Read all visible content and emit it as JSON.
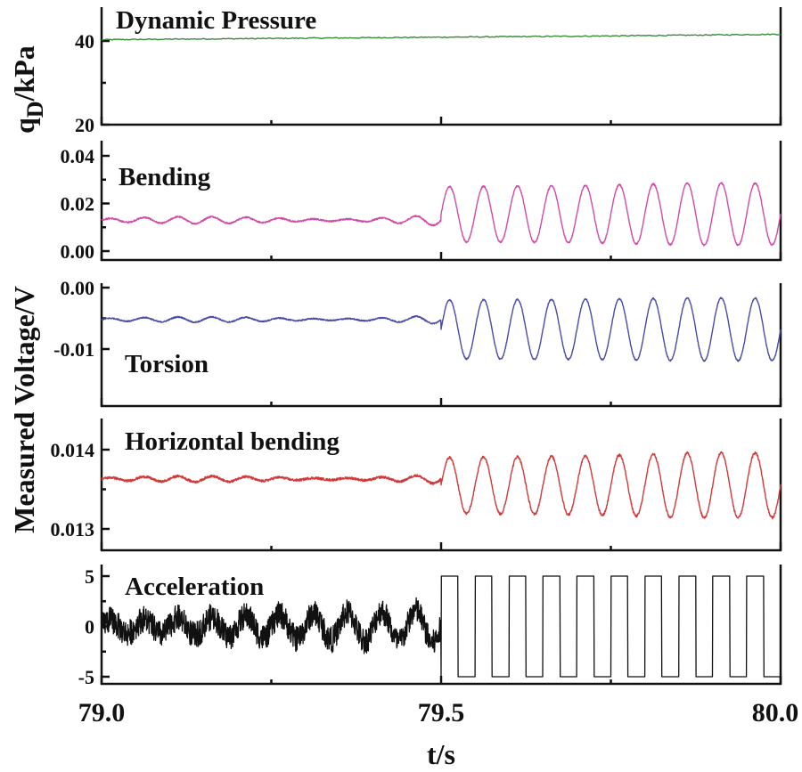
{
  "figure": {
    "ylabel_top": "q_D/kPa",
    "ylabel_top_main": "q",
    "ylabel_top_sub": "D",
    "ylabel_top_rest": "/kPa",
    "ylabel_main": "Measured Voltage/V",
    "xlabel": "t/s"
  },
  "chart_data": [
    {
      "type": "line",
      "title": "Dynamic Pressure",
      "xlim": [
        79.0,
        80.0
      ],
      "ylim": [
        20,
        50
      ],
      "yticks": [
        20,
        40
      ],
      "ytick_labels": [
        "20",
        "40"
      ],
      "color": "#3a8a3a",
      "series": [
        {
          "name": "Dynamic Pressure",
          "x": [
            79.0,
            79.25,
            79.5,
            79.75,
            80.0
          ],
          "y": [
            40.3,
            40.6,
            40.9,
            41.2,
            41.6
          ]
        }
      ]
    },
    {
      "type": "line",
      "title": "Bending",
      "xlim": [
        79.0,
        80.0
      ],
      "ylim": [
        -0.002,
        0.042
      ],
      "yticks": [
        0.0,
        0.02,
        0.04
      ],
      "ytick_labels": [
        "0.00",
        "0.02",
        "0.04"
      ],
      "color": "#d14aa8",
      "signal": {
        "freq_hz": 20,
        "onset_s": 79.5,
        "before_center": 0.013,
        "before_amp": 0.002,
        "after_center": 0.0155,
        "after_amp": [
          0.0115,
          0.0135
        ],
        "noise": 0.0003
      }
    },
    {
      "type": "line",
      "title": "Torsion",
      "xlim": [
        79.0,
        80.0
      ],
      "ylim": [
        -0.0165,
        0.0005
      ],
      "yticks": [
        0.0,
        -0.01
      ],
      "ytick_labels": [
        "0.00",
        "-0.01"
      ],
      "color": "#4a4aa8",
      "signal": {
        "freq_hz": 20,
        "onset_s": 79.5,
        "before_center": -0.0052,
        "before_amp": 0.0006,
        "after_center": -0.0068,
        "after_amp": [
          0.0048,
          0.0052
        ],
        "noise": 0.0001
      }
    },
    {
      "type": "line",
      "title": "Horizontal bending",
      "xlim": [
        79.0,
        80.0
      ],
      "ylim": [
        0.0128,
        0.0145
      ],
      "yticks": [
        0.013,
        0.014
      ],
      "ytick_labels": [
        "0.013",
        "0.014"
      ],
      "color": "#d03a3a",
      "signal": {
        "freq_hz": 20,
        "onset_s": 79.5,
        "before_center": 0.01363,
        "before_amp": 5e-05,
        "after_center": 0.01355,
        "after_amp": [
          0.00035,
          0.00043
        ],
        "noise": 1.5e-05
      }
    },
    {
      "type": "line",
      "title": "Acceleration",
      "xlim": [
        79.0,
        80.0
      ],
      "ylim": [
        -6,
        6
      ],
      "yticks": [
        -5,
        0,
        5
      ],
      "ytick_labels": [
        "-5",
        "0",
        "5"
      ],
      "color": "#111111",
      "signal": {
        "freq_hz": 20,
        "onset_s": 79.5,
        "before_center": 0,
        "before_amp": 1.2,
        "after_type": "square",
        "after_amp": 5,
        "noise": 1.2
      }
    }
  ],
  "xaxis": {
    "xlim": [
      79.0,
      80.0
    ],
    "ticks": [
      79.0,
      79.5,
      80.0
    ],
    "tick_labels": [
      "79.0",
      "79.5",
      "80.0"
    ]
  }
}
